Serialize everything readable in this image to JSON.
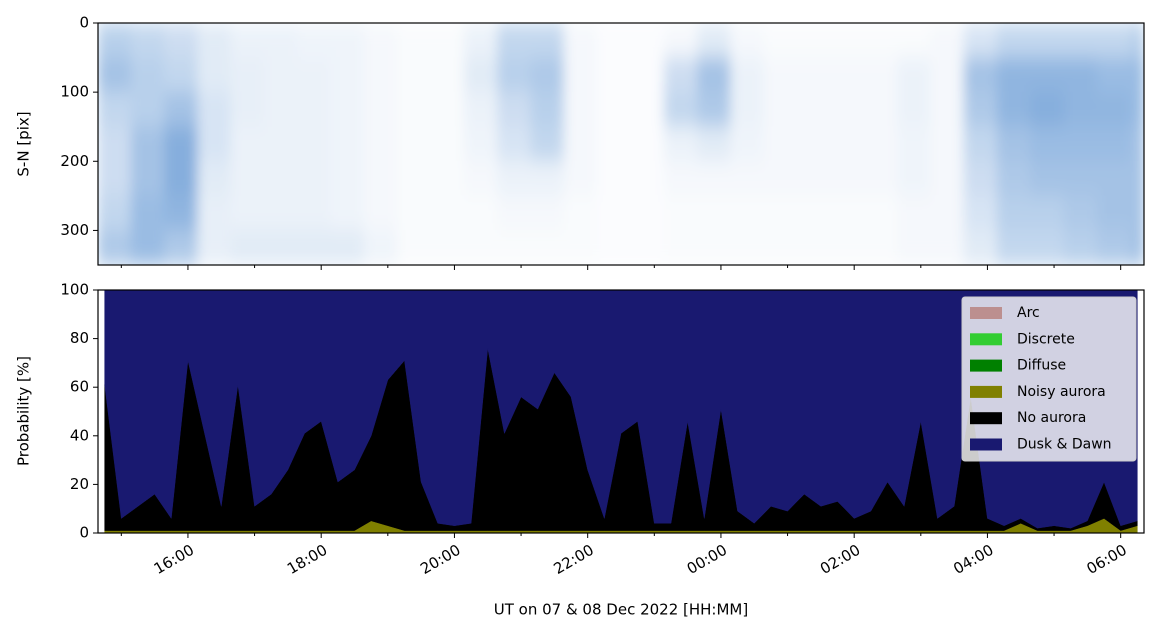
{
  "chart_data": [
    {
      "type": "heatmap",
      "ylabel": "S-N [pix]",
      "ylim": [
        350,
        0
      ],
      "yticks": [
        0,
        100,
        200,
        300
      ],
      "xlim": [
        14.65,
        30.35
      ],
      "xticks": [
        16,
        18,
        20,
        22,
        24,
        26,
        28,
        30
      ],
      "xminorticks": [
        15,
        17,
        19,
        21,
        23,
        25,
        27,
        29
      ],
      "colormap": [
        "#ffffff",
        "#3578c6"
      ],
      "xbins": [
        14.65,
        15.15,
        15.65,
        16.15,
        16.65,
        17.15,
        17.65,
        18.15,
        18.65,
        19.15,
        19.65,
        20.15,
        20.65,
        21.15,
        21.65,
        22.15,
        22.65,
        23.15,
        23.65,
        24.15,
        24.65,
        25.15,
        25.65,
        26.15,
        26.65,
        27.15,
        27.65,
        28.15,
        28.65,
        29.15,
        29.65,
        30.15,
        30.35
      ],
      "ybins": [
        0,
        50,
        100,
        150,
        200,
        250,
        300,
        350
      ],
      "values": [
        [
          0.35,
          0.3,
          0.25,
          0.15,
          0.1,
          0.1,
          0.08,
          0.08,
          0.05,
          0.03,
          0.03,
          0.1,
          0.3,
          0.3,
          0.05,
          0.02,
          0.02,
          0.05,
          0.15,
          0.05,
          0.03,
          0.03,
          0.03,
          0.03,
          0.03,
          0.05,
          0.2,
          0.3,
          0.3,
          0.3,
          0.3,
          0.35
        ],
        [
          0.45,
          0.35,
          0.3,
          0.15,
          0.12,
          0.1,
          0.1,
          0.08,
          0.05,
          0.03,
          0.03,
          0.15,
          0.35,
          0.4,
          0.05,
          0.02,
          0.02,
          0.25,
          0.45,
          0.1,
          0.05,
          0.05,
          0.05,
          0.05,
          0.1,
          0.05,
          0.45,
          0.55,
          0.55,
          0.55,
          0.5,
          0.5
        ],
        [
          0.3,
          0.35,
          0.45,
          0.2,
          0.12,
          0.1,
          0.1,
          0.08,
          0.05,
          0.03,
          0.03,
          0.1,
          0.25,
          0.35,
          0.05,
          0.02,
          0.02,
          0.3,
          0.4,
          0.1,
          0.05,
          0.05,
          0.05,
          0.05,
          0.1,
          0.05,
          0.4,
          0.55,
          0.6,
          0.55,
          0.55,
          0.5
        ],
        [
          0.25,
          0.45,
          0.6,
          0.2,
          0.1,
          0.1,
          0.1,
          0.08,
          0.05,
          0.03,
          0.03,
          0.08,
          0.2,
          0.3,
          0.05,
          0.02,
          0.02,
          0.1,
          0.15,
          0.08,
          0.05,
          0.05,
          0.05,
          0.05,
          0.08,
          0.05,
          0.3,
          0.45,
          0.5,
          0.5,
          0.5,
          0.45
        ],
        [
          0.25,
          0.45,
          0.6,
          0.15,
          0.1,
          0.1,
          0.1,
          0.08,
          0.05,
          0.03,
          0.03,
          0.05,
          0.1,
          0.1,
          0.05,
          0.02,
          0.02,
          0.05,
          0.05,
          0.05,
          0.05,
          0.05,
          0.05,
          0.05,
          0.08,
          0.05,
          0.25,
          0.4,
          0.45,
          0.45,
          0.45,
          0.45
        ],
        [
          0.3,
          0.5,
          0.55,
          0.12,
          0.1,
          0.1,
          0.1,
          0.08,
          0.05,
          0.03,
          0.03,
          0.03,
          0.05,
          0.05,
          0.03,
          0.02,
          0.02,
          0.03,
          0.03,
          0.03,
          0.03,
          0.03,
          0.03,
          0.03,
          0.05,
          0.05,
          0.2,
          0.35,
          0.35,
          0.4,
          0.45,
          0.45
        ],
        [
          0.4,
          0.5,
          0.4,
          0.12,
          0.15,
          0.15,
          0.15,
          0.15,
          0.08,
          0.03,
          0.03,
          0.03,
          0.03,
          0.03,
          0.03,
          0.02,
          0.02,
          0.03,
          0.03,
          0.03,
          0.03,
          0.03,
          0.03,
          0.03,
          0.05,
          0.05,
          0.15,
          0.3,
          0.3,
          0.35,
          0.4,
          0.45
        ]
      ]
    },
    {
      "type": "stacked_area",
      "ylabel": "Probability [%]",
      "xlabel": "UT on 07 & 08 Dec 2022 [HH:MM]",
      "ylim": [
        0,
        100
      ],
      "yticks": [
        0,
        20,
        40,
        60,
        80,
        100
      ],
      "xlim": [
        14.65,
        30.35
      ],
      "xticks": [
        {
          "value": 16,
          "label": "16:00"
        },
        {
          "value": 18,
          "label": "18:00"
        },
        {
          "value": 20,
          "label": "20:00"
        },
        {
          "value": 22,
          "label": "22:00"
        },
        {
          "value": 24,
          "label": "00:00"
        },
        {
          "value": 26,
          "label": "02:00"
        },
        {
          "value": 28,
          "label": "04:00"
        },
        {
          "value": 30,
          "label": "06:00"
        }
      ],
      "xminorticks": [
        15,
        17,
        19,
        21,
        23,
        25,
        27,
        29
      ],
      "legend": "upper right",
      "x": [
        14.75,
        15,
        15.25,
        15.5,
        15.75,
        16,
        16.25,
        16.5,
        16.75,
        17,
        17.25,
        17.5,
        17.75,
        18,
        18.25,
        18.5,
        18.75,
        19,
        19.25,
        19.5,
        19.75,
        20,
        20.25,
        20.5,
        20.75,
        21,
        21.25,
        21.5,
        21.75,
        22,
        22.25,
        22.5,
        22.75,
        23,
        23.25,
        23.5,
        23.75,
        24,
        24.25,
        24.5,
        24.75,
        25,
        25.25,
        25.5,
        25.75,
        26,
        26.25,
        26.5,
        26.75,
        27,
        27.25,
        27.5,
        27.75,
        28,
        28.25,
        28.5,
        28.75,
        29,
        29.25,
        29.5,
        29.75,
        30,
        30.25
      ],
      "series": [
        {
          "name": "Arc",
          "color": "#bc8f8f",
          "values": [
            0,
            0,
            0,
            0,
            0,
            0,
            0,
            0,
            0,
            0,
            0,
            0,
            0,
            0,
            0,
            0,
            0,
            0,
            0,
            0,
            0,
            0,
            0,
            0,
            0,
            0,
            0,
            0,
            0,
            0,
            0,
            0,
            0,
            0,
            0,
            0,
            0,
            0,
            0,
            0,
            0,
            0,
            0,
            0,
            0,
            0,
            0,
            0,
            0,
            0,
            0,
            0,
            0,
            0,
            0,
            0,
            0,
            0,
            0,
            0,
            0,
            0,
            0
          ]
        },
        {
          "name": "Discrete",
          "color": "#32cd32",
          "values": [
            0,
            0,
            0,
            0,
            0,
            0,
            0,
            0,
            0,
            0,
            0,
            0,
            0,
            0,
            0,
            0,
            0,
            0,
            0,
            0,
            0,
            0,
            0,
            0,
            0,
            0,
            0,
            0,
            0,
            0,
            0,
            0,
            0,
            0,
            0,
            0,
            0,
            0,
            0,
            0,
            0,
            0,
            0,
            0,
            0,
            0,
            0,
            0,
            0,
            0,
            0,
            0,
            0,
            0,
            0,
            0,
            0,
            0,
            0,
            0,
            0,
            0,
            0
          ]
        },
        {
          "name": "Diffuse",
          "color": "#008000",
          "values": [
            0,
            0,
            0,
            0,
            0,
            0,
            0,
            0,
            0,
            0,
            0,
            0,
            0,
            0,
            0,
            0,
            0,
            0,
            0,
            0,
            0,
            0,
            0,
            0,
            0,
            0,
            0,
            0,
            0,
            0,
            0,
            0,
            0,
            0,
            0,
            0,
            0,
            0,
            0,
            0,
            0,
            0,
            0,
            0,
            0,
            0,
            0,
            0,
            0,
            0,
            0,
            0,
            0,
            0,
            0,
            0,
            0,
            0,
            0,
            0,
            0,
            0,
            0
          ]
        },
        {
          "name": "Noisy aurora",
          "color": "#808000",
          "values": [
            1,
            1,
            1,
            1,
            1,
            1,
            1,
            1,
            1,
            1,
            1,
            1,
            1,
            1,
            1,
            1,
            5,
            3,
            1,
            1,
            1,
            1,
            1,
            1,
            1,
            1,
            1,
            1,
            1,
            1,
            1,
            1,
            1,
            1,
            1,
            1,
            1,
            1,
            1,
            1,
            1,
            1,
            1,
            1,
            1,
            1,
            1,
            1,
            1,
            1,
            1,
            1,
            1,
            1,
            1,
            4,
            1,
            1,
            1,
            3,
            6,
            1,
            3
          ]
        },
        {
          "name": "No aurora",
          "color": "#000000",
          "values": [
            60,
            5,
            10,
            15,
            5,
            70,
            40,
            10,
            60,
            10,
            15,
            25,
            40,
            45,
            20,
            25,
            35,
            60,
            70,
            20,
            3,
            2,
            3,
            75,
            40,
            55,
            50,
            65,
            55,
            25,
            5,
            40,
            45,
            3,
            3,
            45,
            5,
            50,
            8,
            3,
            10,
            8,
            15,
            10,
            12,
            5,
            8,
            20,
            10,
            45,
            5,
            10,
            55,
            5,
            2,
            2,
            1,
            2,
            1,
            2,
            15,
            2,
            2
          ]
        },
        {
          "name": "Dusk & Dawn",
          "color": "#191970",
          "values": [
            39,
            94,
            89,
            84,
            94,
            29,
            59,
            89,
            39,
            89,
            84,
            74,
            59,
            54,
            79,
            74,
            60,
            37,
            29,
            79,
            96,
            97,
            96,
            24,
            59,
            44,
            49,
            34,
            44,
            74,
            94,
            59,
            54,
            96,
            96,
            54,
            94,
            49,
            91,
            96,
            89,
            91,
            84,
            89,
            87,
            94,
            91,
            79,
            89,
            54,
            94,
            89,
            44,
            94,
            97,
            94,
            98,
            97,
            98,
            95,
            79,
            97,
            95
          ]
        }
      ]
    }
  ]
}
